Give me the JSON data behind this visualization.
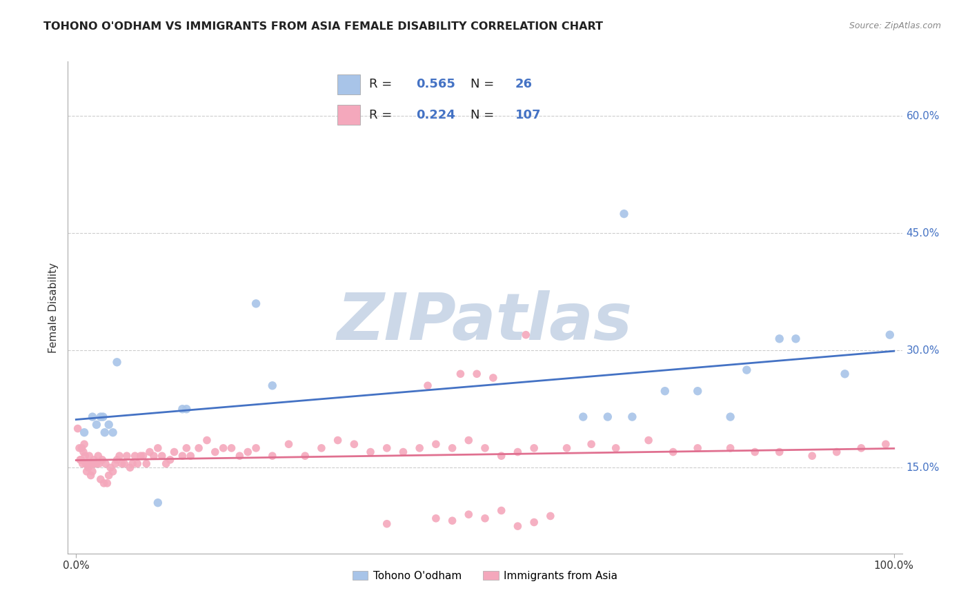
{
  "title": "TOHONO O'ODHAM VS IMMIGRANTS FROM ASIA FEMALE DISABILITY CORRELATION CHART",
  "source": "Source: ZipAtlas.com",
  "ylabel": "Female Disability",
  "xlim": [
    -0.01,
    1.01
  ],
  "ylim": [
    0.04,
    0.67
  ],
  "yticks": [
    0.15,
    0.3,
    0.45,
    0.6
  ],
  "ytick_labels": [
    "15.0%",
    "30.0%",
    "45.0%",
    "60.0%"
  ],
  "blue_R": 0.565,
  "blue_N": 26,
  "pink_R": 0.224,
  "pink_N": 107,
  "blue_color": "#a8c4e8",
  "pink_color": "#f4a8bc",
  "blue_line_color": "#4472c4",
  "pink_line_color": "#e07090",
  "blue_scatter_x": [
    0.01,
    0.02,
    0.025,
    0.03,
    0.033,
    0.035,
    0.04,
    0.045,
    0.05,
    0.1,
    0.13,
    0.135,
    0.22,
    0.24,
    0.62,
    0.65,
    0.67,
    0.68,
    0.72,
    0.76,
    0.8,
    0.82,
    0.86,
    0.88,
    0.94,
    0.995
  ],
  "blue_scatter_y": [
    0.195,
    0.215,
    0.205,
    0.215,
    0.215,
    0.195,
    0.205,
    0.195,
    0.285,
    0.105,
    0.225,
    0.225,
    0.36,
    0.255,
    0.215,
    0.215,
    0.475,
    0.215,
    0.248,
    0.248,
    0.215,
    0.275,
    0.315,
    0.315,
    0.27,
    0.32
  ],
  "pink_scatter_x": [
    0.002,
    0.004,
    0.005,
    0.006,
    0.007,
    0.008,
    0.009,
    0.01,
    0.011,
    0.012,
    0.013,
    0.014,
    0.015,
    0.016,
    0.017,
    0.018,
    0.019,
    0.02,
    0.021,
    0.022,
    0.023,
    0.025,
    0.027,
    0.028,
    0.03,
    0.032,
    0.034,
    0.036,
    0.038,
    0.04,
    0.042,
    0.045,
    0.048,
    0.05,
    0.053,
    0.056,
    0.059,
    0.062,
    0.066,
    0.069,
    0.072,
    0.075,
    0.079,
    0.082,
    0.086,
    0.09,
    0.095,
    0.1,
    0.105,
    0.11,
    0.115,
    0.12,
    0.13,
    0.135,
    0.14,
    0.15,
    0.16,
    0.17,
    0.18,
    0.19,
    0.2,
    0.21,
    0.22,
    0.24,
    0.26,
    0.28,
    0.3,
    0.32,
    0.34,
    0.36,
    0.38,
    0.4,
    0.42,
    0.44,
    0.46,
    0.48,
    0.5,
    0.52,
    0.54,
    0.56,
    0.6,
    0.63,
    0.66,
    0.7,
    0.73,
    0.76,
    0.8,
    0.83,
    0.86,
    0.9,
    0.93,
    0.96,
    0.99,
    0.38,
    0.46,
    0.5,
    0.54,
    0.58,
    0.43,
    0.47,
    0.51,
    0.55,
    0.48,
    0.52,
    0.56,
    0.44,
    0.49
  ],
  "pink_scatter_y": [
    0.2,
    0.175,
    0.16,
    0.16,
    0.175,
    0.155,
    0.17,
    0.18,
    0.165,
    0.155,
    0.145,
    0.155,
    0.15,
    0.165,
    0.155,
    0.14,
    0.155,
    0.145,
    0.155,
    0.16,
    0.155,
    0.155,
    0.165,
    0.155,
    0.135,
    0.16,
    0.13,
    0.155,
    0.13,
    0.14,
    0.15,
    0.145,
    0.155,
    0.16,
    0.165,
    0.155,
    0.155,
    0.165,
    0.15,
    0.155,
    0.165,
    0.155,
    0.165,
    0.165,
    0.155,
    0.17,
    0.165,
    0.175,
    0.165,
    0.155,
    0.16,
    0.17,
    0.165,
    0.175,
    0.165,
    0.175,
    0.185,
    0.17,
    0.175,
    0.175,
    0.165,
    0.17,
    0.175,
    0.165,
    0.18,
    0.165,
    0.175,
    0.185,
    0.18,
    0.17,
    0.175,
    0.17,
    0.175,
    0.18,
    0.175,
    0.185,
    0.175,
    0.165,
    0.17,
    0.175,
    0.175,
    0.18,
    0.175,
    0.185,
    0.17,
    0.175,
    0.175,
    0.17,
    0.17,
    0.165,
    0.17,
    0.175,
    0.18,
    0.078,
    0.082,
    0.085,
    0.075,
    0.088,
    0.255,
    0.27,
    0.265,
    0.32,
    0.09,
    0.095,
    0.08,
    0.085,
    0.27
  ],
  "watermark_text": "ZIPatlas",
  "watermark_color": "#ccd8e8",
  "legend_blue_label": "Tohono O'odham",
  "legend_pink_label": "Immigrants from Asia",
  "background_color": "#ffffff",
  "grid_color": "#cccccc",
  "tick_color": "#4472c4",
  "text_color": "#222222"
}
